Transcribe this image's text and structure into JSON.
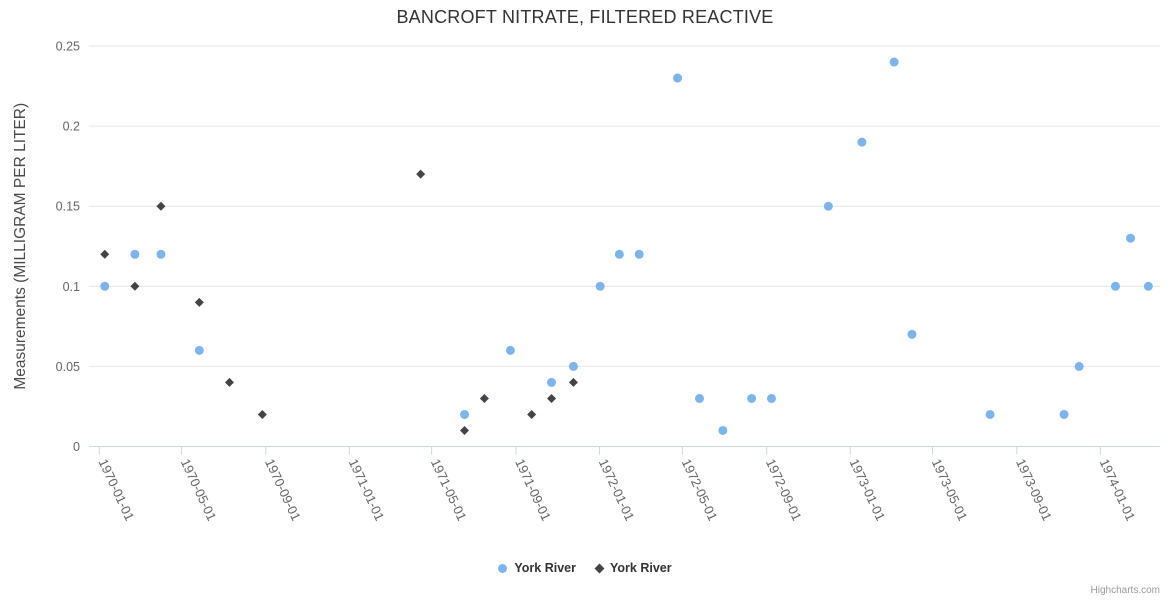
{
  "page": {
    "credits": "Highcharts.com"
  },
  "colors": {
    "gridline": "#e6e6e6",
    "axis_line": "#ccd6eb",
    "tick_mark": "#ccd6eb",
    "tick_label": "#666666",
    "axis_title": "#4a4a4a",
    "title": "#333333",
    "legend_text": "#333333",
    "credits": "#999999",
    "series_blue": "#7cb5ec",
    "series_dark": "#434348"
  },
  "chart_data": {
    "type": "scatter",
    "title": "BANCROFT NITRATE, FILTERED REACTIVE",
    "xlabel": "",
    "ylabel": "Measurements (MILLIGRAM PER LITER)",
    "ylim": [
      0,
      0.25
    ],
    "yticks": [
      0,
      0.05,
      0.1,
      0.15,
      0.2,
      0.25
    ],
    "ytick_labels": [
      "0",
      "0.05",
      "0.1",
      "0.15",
      "0.2",
      "0.25"
    ],
    "xticks": [
      "1970-01-01",
      "1970-05-01",
      "1970-09-01",
      "1971-01-01",
      "1971-05-01",
      "1971-09-01",
      "1972-01-01",
      "1972-05-01",
      "1972-09-01",
      "1973-01-01",
      "1973-05-01",
      "1973-09-01",
      "1974-01-01"
    ],
    "xlim": [
      "1969-12-17",
      "1974-03-29"
    ],
    "grid": "horizontal-only",
    "legend_position": "bottom-center",
    "x_label_rotation_deg": 65,
    "series": [
      {
        "name": "York River",
        "marker": "circle",
        "color": "#7cb5ec",
        "points": [
          [
            "1970-01-09",
            0.1
          ],
          [
            "1970-02-22",
            0.12
          ],
          [
            "1970-04-01",
            0.12
          ],
          [
            "1970-05-27",
            0.06
          ],
          [
            "1971-06-18",
            0.02
          ],
          [
            "1971-08-24",
            0.06
          ],
          [
            "1971-10-23",
            0.04
          ],
          [
            "1971-11-24",
            0.05
          ],
          [
            "1972-01-02",
            0.1
          ],
          [
            "1972-01-30",
            0.12
          ],
          [
            "1972-02-28",
            0.12
          ],
          [
            "1972-04-24",
            0.23
          ],
          [
            "1972-05-26",
            0.03
          ],
          [
            "1972-06-29",
            0.01
          ],
          [
            "1972-08-10",
            0.03
          ],
          [
            "1972-09-08",
            0.03
          ],
          [
            "1972-11-30",
            0.15
          ],
          [
            "1973-01-18",
            0.19
          ],
          [
            "1973-03-06",
            0.24
          ],
          [
            "1973-04-01",
            0.07
          ],
          [
            "1973-07-24",
            0.02
          ],
          [
            "1973-11-09",
            0.02
          ],
          [
            "1973-12-01",
            0.05
          ],
          [
            "1974-01-23",
            0.1
          ],
          [
            "1974-02-14",
            0.13
          ],
          [
            "1974-03-12",
            0.1
          ]
        ]
      },
      {
        "name": "York River",
        "marker": "diamond",
        "color": "#434348",
        "points": [
          [
            "1970-01-09",
            0.12
          ],
          [
            "1970-02-22",
            0.1
          ],
          [
            "1970-04-01",
            0.15
          ],
          [
            "1970-05-27",
            0.09
          ],
          [
            "1970-07-10",
            0.04
          ],
          [
            "1970-08-27",
            0.02
          ],
          [
            "1971-04-15",
            0.17
          ],
          [
            "1971-06-18",
            0.01
          ],
          [
            "1971-07-17",
            0.03
          ],
          [
            "1971-09-24",
            0.02
          ],
          [
            "1971-10-23",
            0.03
          ],
          [
            "1971-11-24",
            0.04
          ]
        ]
      }
    ]
  }
}
